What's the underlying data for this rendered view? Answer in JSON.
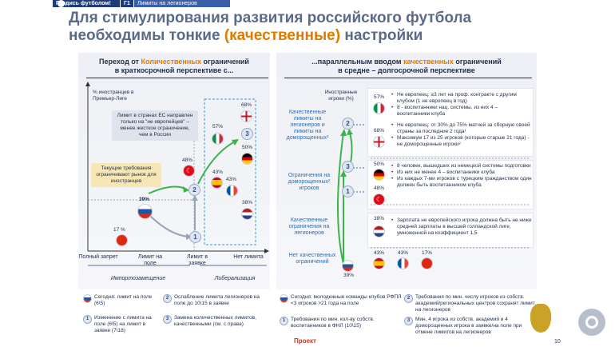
{
  "header": {
    "brand_label": "Гордись футболом!",
    "section_code": "Г1",
    "section_title": "Лимиты на легионеров",
    "title_part1": "Для стимулирования развития российского футбола необходимы тонкие ",
    "title_highlight": "(качественные)",
    "title_part2": " настройки",
    "colors": {
      "accent": "#e07b00",
      "title": "#5a6b87",
      "bar": "#1f3c78",
      "blue": "#2e6db3",
      "green": "#3bb54a"
    }
  },
  "left": {
    "heading_prefix": "Переход от ",
    "heading_highlight": "Количественных",
    "heading_suffix": " ограничений",
    "heading_line2": "в краткосрочной перспективе с...",
    "y_axis_label": "% иностранцев в Премьер-Лиге",
    "x_ticks": [
      "Полный запрет",
      "Лимит на поле",
      "Лимит в заявке",
      "Нет лимита"
    ],
    "x_group_left": "Импортозамещение",
    "x_group_right": "Либерализация",
    "callout_eu": "Лимит в странах ЕС направлен только на \"не европейцев\" – менее жесткое ограничение, чем в России",
    "callout_current": "Текущие требования ограничивают рынок для иностранцев",
    "points": [
      {
        "country": "China",
        "pct": "17 %"
      },
      {
        "country": "Russia",
        "pct": "39%"
      },
      {
        "country": "Turkey",
        "pct": "48%"
      },
      {
        "country": "Spain",
        "pct": "43%"
      },
      {
        "country": "France",
        "pct": "43%"
      },
      {
        "country": "Italy",
        "pct": "57%"
      },
      {
        "country": "England",
        "pct": "68%"
      },
      {
        "country": "Germany",
        "pct": "50%"
      },
      {
        "country": "Netherlands",
        "pct": "38%"
      }
    ],
    "markers": [
      "1",
      "2",
      "3"
    ]
  },
  "right": {
    "heading_prefix": "...параллельным вводом ",
    "heading_highlight": "качественных",
    "heading_suffix": " ограничений",
    "heading_line2": "в средне – долгосрочной перспективе",
    "col_header": "Иностранные игроки (%)",
    "side_labels": [
      "Качественные лимиты на легионеров и лимиты на доморощенных²",
      "Ограничения на доморощенных² игроков",
      "Качественные ограничения на легионеров",
      "Нет качественных ограничений"
    ],
    "bottom_pct": "39%",
    "rows": [
      {
        "pcts": [
          "57%",
          "68%"
        ],
        "bullets": [
          "Не европеец: ≥3 лет на проф. контракте с другим клубом (1 не европеец в год)",
          "8 - воспитанники нац. системы, из них 4 – воспитанники клуба",
          "Не европеец: от 30% до 75% матчей за сборную своей страны за последние 2 года¹",
          "Максимум 17 из 25 игроков (которые старше 21 года) - не доморощенные игроки²"
        ]
      },
      {
        "pcts": [
          "50%",
          "48%"
        ],
        "bullets": [
          "8 человек, вышедших из немецкой системы подготовки",
          "Из них не менее 4 – воспитанники клуба",
          "Из каждых 7-ми игроков с турецким гражданством один должен быть воспитанником клуба"
        ]
      },
      {
        "pcts": [
          "38%"
        ],
        "bullets": [
          "Зарплата не европейского игрока должна быть не ниже средней зарплаты в высшей голландской лиге, умноженной на коэффициент 1,5"
        ]
      },
      {
        "pcts": [
          "43%",
          "43%",
          "17%"
        ],
        "bullets": []
      }
    ]
  },
  "legend": {
    "left": [
      {
        "marker": "flag-ru",
        "text": "Сегодня: лимит на поле (6\\5)"
      },
      {
        "marker": "2",
        "text": "Ослабление лимита легионеров на поле до 10\\15 в заявке"
      },
      {
        "marker": "1",
        "text": "Изменение с лимита на поле (6\\5) на лимит в заявке (7\\18)"
      },
      {
        "marker": "3",
        "text": "Замена количественных лимитов, качественными (см. с права)"
      }
    ],
    "right": [
      {
        "marker": "flag-ru",
        "text": "Сегодня: молодежные команды клубов РФПЛ <3 игроков >21 года на поле"
      },
      {
        "marker": "2",
        "text": "Требования по мин. числу игроков из собств. академий/региональных центров сохранят лимит на легионеров"
      },
      {
        "marker": "1",
        "text": "Требования по мин. кол-ву собств. воспитанников в ФНЛ (10\\15)"
      },
      {
        "marker": "3",
        "text": "Мин. 4 игрока из собств. академий и 4 доморощенных игрока в заявке/на поле при отмене лимитов на легионеров"
      }
    ]
  },
  "footer": {
    "draft_label": "Проект",
    "page_number": "10"
  }
}
